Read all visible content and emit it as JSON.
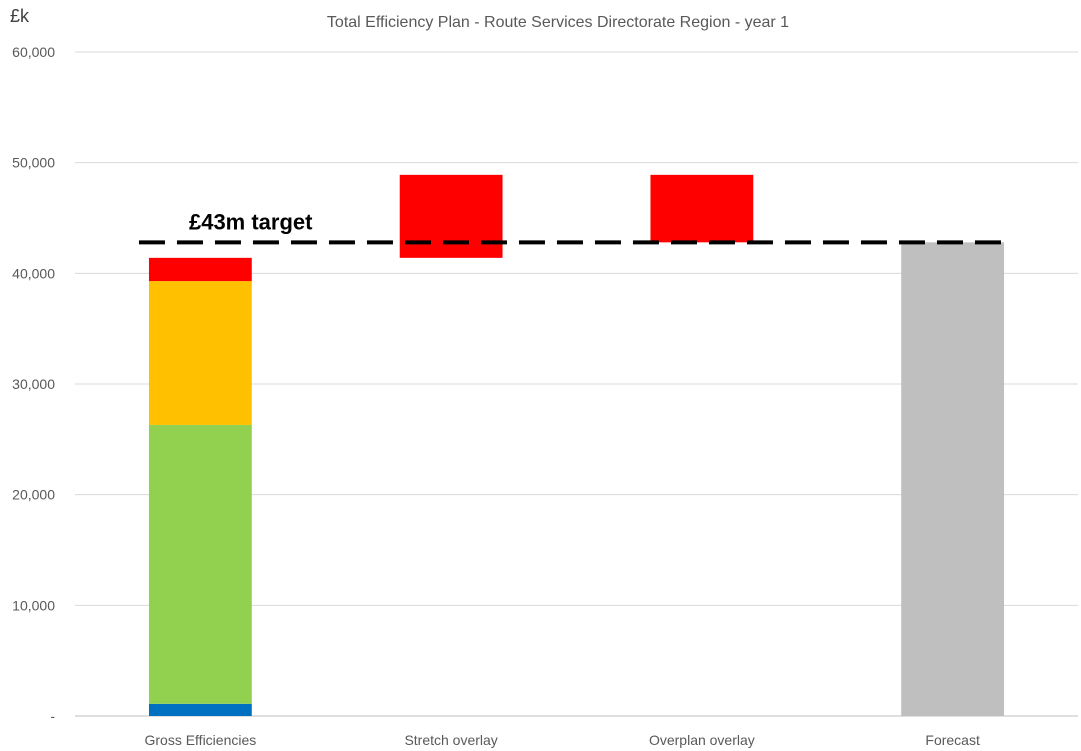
{
  "chart_data": {
    "type": "bar",
    "title": "Total Efficiency Plan - Route Services Directorate Region - year 1",
    "unit_label": "£k",
    "ylim": [
      0,
      60000
    ],
    "y_ticks": [
      {
        "value": 0,
        "label": "-"
      },
      {
        "value": 10000,
        "label": "10,000"
      },
      {
        "value": 20000,
        "label": "20,000"
      },
      {
        "value": 30000,
        "label": "30,000"
      },
      {
        "value": 40000,
        "label": "40,000"
      },
      {
        "value": 50000,
        "label": "50,000"
      },
      {
        "value": 60000,
        "label": "60,000"
      }
    ],
    "grid": true,
    "categories": [
      "Gross Efficiencies",
      "Stretch overlay",
      "Overplan overlay",
      "Forecast"
    ],
    "bars": [
      {
        "category": "Gross Efficiencies",
        "segments": [
          {
            "from": 0,
            "to": 1100,
            "color": "#0070C0"
          },
          {
            "from": 1100,
            "to": 26300,
            "color": "#92D050"
          },
          {
            "from": 26300,
            "to": 39300,
            "color": "#FFC000"
          },
          {
            "from": 39300,
            "to": 41400,
            "color": "#FF0000"
          }
        ]
      },
      {
        "category": "Stretch overlay",
        "segments": [
          {
            "from": 41400,
            "to": 48900,
            "color": "#FF0000"
          }
        ]
      },
      {
        "category": "Overplan overlay",
        "segments": [
          {
            "from": 42800,
            "to": 48900,
            "color": "#FF0000"
          }
        ]
      },
      {
        "category": "Forecast",
        "segments": [
          {
            "from": 0,
            "to": 42800,
            "color": "#BFBFBF"
          }
        ]
      }
    ],
    "target": {
      "value": 42800,
      "label": "£43m target"
    }
  }
}
